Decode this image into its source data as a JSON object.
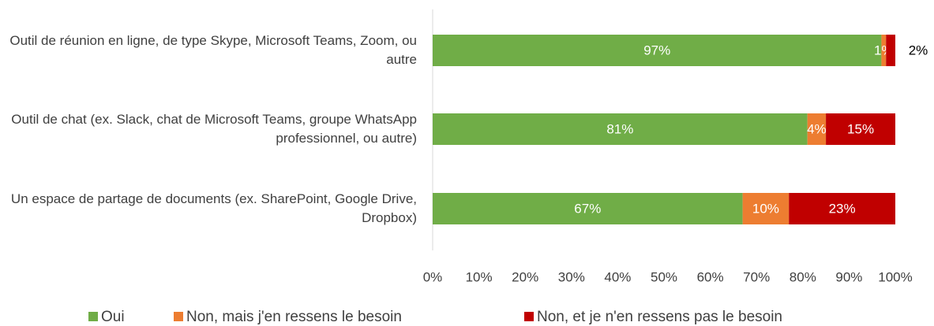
{
  "chart_data": {
    "type": "stacked-bar-horizontal",
    "categories": [
      "Outil de réunion en ligne, de type Skype, Microsoft Teams, Zoom, ou autre",
      "Outil de chat (ex. Slack, chat de Microsoft Teams, groupe WhatsApp professionnel, ou autre)",
      "Un espace de partage de documents (ex. SharePoint, Google Drive, Dropbox)"
    ],
    "series": [
      {
        "name": "Oui",
        "color": "#70ad47",
        "values": [
          97,
          81,
          67
        ],
        "value_labels": [
          "97%",
          "81%",
          "67%"
        ]
      },
      {
        "name": "Non, mais j'en ressens le besoin",
        "color": "#ed7d31",
        "values": [
          1,
          4,
          10
        ],
        "value_labels": [
          "1%",
          "4%",
          "10%"
        ]
      },
      {
        "name": "Non, et je n'en ressens pas le besoin",
        "color": "#c00000",
        "values": [
          2,
          15,
          23
        ],
        "value_labels": [
          "2%",
          "15%",
          "23%"
        ]
      }
    ],
    "xlim": [
      0,
      100
    ],
    "xticks": [
      {
        "value": 0,
        "label": "0%"
      },
      {
        "value": 10,
        "label": "10%"
      },
      {
        "value": 20,
        "label": "20%"
      },
      {
        "value": 30,
        "label": "30%"
      },
      {
        "value": 40,
        "label": "40%"
      },
      {
        "value": 50,
        "label": "50%"
      },
      {
        "value": 60,
        "label": "60%"
      },
      {
        "value": 70,
        "label": "70%"
      },
      {
        "value": 80,
        "label": "80%"
      },
      {
        "value": 90,
        "label": "90%"
      },
      {
        "value": 100,
        "label": "100%"
      }
    ],
    "legend": "bottom"
  }
}
